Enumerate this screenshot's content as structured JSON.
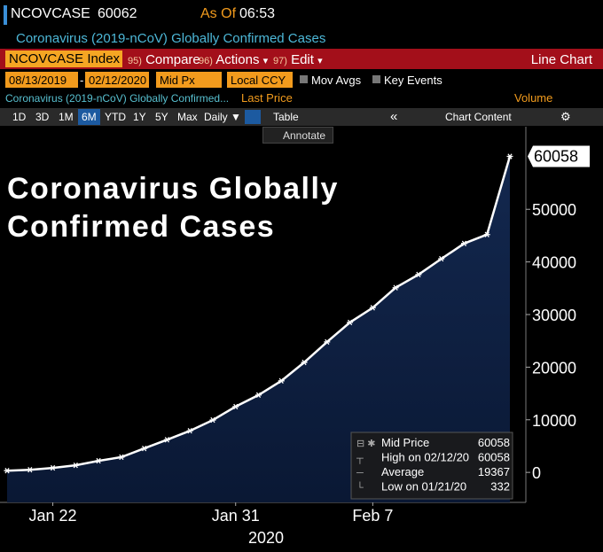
{
  "header": {
    "ticker": "NCOVCASE",
    "last": 60062,
    "as_of": "As Of",
    "time": "06:53",
    "description": "Coronavirus (2019-nCoV) Globally Confirmed Cases"
  },
  "toolbar": {
    "security": "NCOVCASE Index",
    "actions": [
      {
        "key": "95)",
        "label": "Compare"
      },
      {
        "key": "96)",
        "label": "Actions",
        "menu": "▾"
      },
      {
        "key": "97)",
        "label": "Edit",
        "menu": "▾"
      }
    ],
    "view": "Line Chart"
  },
  "settings": {
    "start": "08/13/2019",
    "dash": "-",
    "end": "02/12/2020",
    "price": "Mid Px",
    "currency": "Local CCY",
    "mov_avgs": "Mov Avgs",
    "key_events": "Key Events"
  },
  "series_bar": {
    "name": "Coronavirus (2019-nCoV) Globally Confirmed...",
    "field": "Last Price",
    "volume": "Volume"
  },
  "periods": [
    "1D",
    "3D",
    "1M",
    "6M",
    "YTD",
    "1Y",
    "5Y",
    "Max"
  ],
  "active_period": 3,
  "frequency": "Daily ▼",
  "table": "Table",
  "collapse": "«",
  "chart_content": "Chart Content",
  "annotate": "Annotate",
  "chart_data": {
    "type": "line",
    "title_lines": [
      "Coronavirus Globally",
      "Confirmed Cases"
    ],
    "categories": [
      null,
      null,
      "Jan 22",
      null,
      null,
      null,
      null,
      null,
      null,
      null,
      "Jan 31",
      null,
      null,
      null,
      null,
      null,
      "Feb 7",
      null,
      null,
      null,
      null,
      null,
      null
    ],
    "x_year": "2020",
    "series": [
      {
        "name": "Mid Price",
        "color": "#ffffff",
        "area_color": "#0f2142",
        "values": [
          332,
          500,
          850,
          1350,
          2200,
          2900,
          4550,
          6200,
          7900,
          9950,
          12500,
          14700,
          17400,
          20900,
          24800,
          28500,
          31300,
          35100,
          37600,
          40600,
          43500,
          45200,
          60058
        ]
      }
    ],
    "ylim": [
      -5700,
      65700
    ],
    "yticks": [
      0,
      10000,
      20000,
      30000,
      40000,
      50000
    ],
    "legend": [
      {
        "label": "Mid Price",
        "value": 60058
      },
      {
        "label": "High on 02/12/20",
        "value": 60058
      },
      {
        "label": "Average",
        "value": 19367
      },
      {
        "label": "Low on 01/21/20",
        "value": 332
      }
    ]
  }
}
